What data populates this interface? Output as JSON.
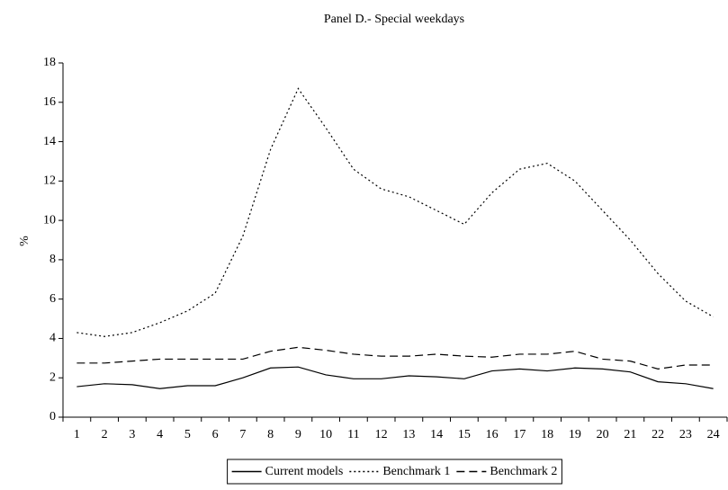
{
  "chart_data": {
    "type": "line",
    "title": "Panel D.- Special weekdays",
    "y_label": "%",
    "categories": [
      "1",
      "2",
      "3",
      "4",
      "5",
      "6",
      "7",
      "8",
      "9",
      "10",
      "11",
      "12",
      "13",
      "14",
      "15",
      "16",
      "17",
      "18",
      "19",
      "20",
      "21",
      "22",
      "23",
      "24"
    ],
    "series": [
      {
        "name": "Current models",
        "color": "#000000",
        "dash": "solid",
        "values": [
          1.55,
          1.7,
          1.65,
          1.45,
          1.6,
          1.6,
          2.0,
          2.5,
          2.55,
          2.15,
          1.95,
          1.95,
          2.1,
          2.05,
          1.95,
          2.35,
          2.45,
          2.35,
          2.5,
          2.45,
          2.3,
          1.8,
          1.7,
          1.45
        ]
      },
      {
        "name": "Benchmark 1",
        "color": "#000000",
        "dash": "dotted",
        "values": [
          4.3,
          4.1,
          4.3,
          4.8,
          5.4,
          6.3,
          9.2,
          13.6,
          16.7,
          14.7,
          12.6,
          11.6,
          11.2,
          10.5,
          9.8,
          11.4,
          12.6,
          12.9,
          12.0,
          10.5,
          9.0,
          7.3,
          5.9,
          5.1
        ]
      },
      {
        "name": "Benchmark 2",
        "color": "#000000",
        "dash": "dashed",
        "values": [
          2.75,
          2.75,
          2.85,
          2.95,
          2.95,
          2.95,
          2.95,
          3.35,
          3.55,
          3.4,
          3.2,
          3.1,
          3.1,
          3.2,
          3.1,
          3.05,
          3.2,
          3.2,
          3.35,
          2.95,
          2.85,
          2.45,
          2.65,
          2.65
        ]
      }
    ],
    "ylim": [
      0,
      18
    ],
    "yticks": [
      0,
      2,
      4,
      6,
      8,
      10,
      12,
      14,
      16,
      18
    ],
    "grid": false,
    "legend": "bottom"
  }
}
